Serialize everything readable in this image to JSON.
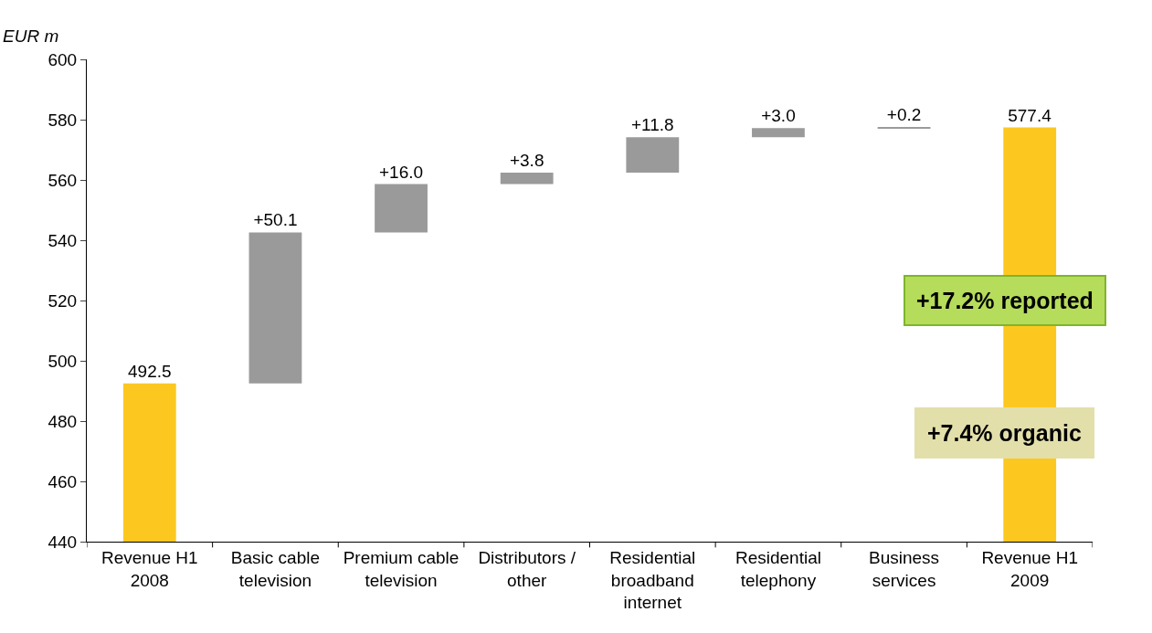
{
  "chart_data": {
    "type": "bar",
    "ylabel": "EUR m",
    "categories": [
      "Revenue H1 2008",
      "Basic cable television",
      "Premium cable television",
      "Distributors / other",
      "Residential broadband internet",
      "Residential telephony",
      "Business services",
      "Revenue H1 2009"
    ],
    "values": [
      492.5,
      50.1,
      16.0,
      3.8,
      11.8,
      3.0,
      0.2,
      577.4
    ],
    "base": [
      0,
      492.5,
      542.6,
      558.6,
      562.4,
      574.2,
      577.2,
      0
    ],
    "colors": [
      "#fcc820",
      "#9a9a9a",
      "#9a9a9a",
      "#9a9a9a",
      "#9a9a9a",
      "#9a9a9a",
      "#9a9a9a",
      "#fcc820"
    ],
    "value_labels": [
      "492.5",
      "+50.1",
      "+16.0",
      "+3.8",
      "+11.8",
      "+3.0",
      "+0.2",
      "577.4"
    ],
    "ylim": [
      440,
      600
    ],
    "yticks": [
      440,
      460,
      480,
      500,
      520,
      540,
      560,
      580,
      600
    ],
    "annotations": [
      "+17.2% reported",
      "+7.4% organic"
    ]
  }
}
